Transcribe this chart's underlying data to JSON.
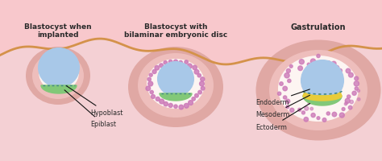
{
  "bg_color": "#f8c8cc",
  "label1": "Blastocyst when\nimplanted",
  "label2": "Blastocyst with\nbilaminar embryonic disc",
  "label3": "Gastrulation",
  "annot_epiblast": "Epiblast",
  "annot_hypoblast": "Hypoblast",
  "annot_ectoderm": "Ectoderm",
  "annot_mesoderm": "Mesoderm",
  "annot_endoderm": "Endoderm",
  "color_blue_light": "#a8c8e8",
  "color_blue_mid": "#7aaed0",
  "color_blue_dark": "#4a85b0",
  "color_green": "#82c878",
  "color_green_dark": "#5aaa52",
  "color_yellow": "#e8cc3a",
  "color_pink_outer": "#e0a8a4",
  "color_pink_medium": "#eebebc",
  "color_pink_inner": "#f8e4e0",
  "color_white_inner": "#fdf5f2",
  "color_wave_fill": "#f4d0d4",
  "color_wave_line": "#d4924a",
  "color_dots": "#cc7ab8",
  "color_text": "#2a2a2a",
  "color_arrow": "#111111",
  "color_teal_dot": "#448888"
}
